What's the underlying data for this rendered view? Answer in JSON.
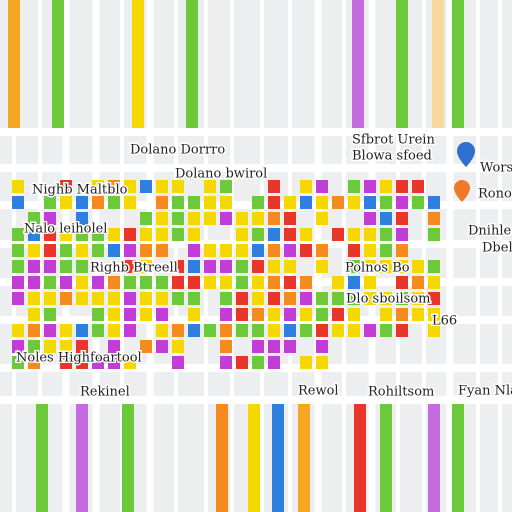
{
  "map": {
    "labels": [
      "Dolano Dorrro",
      "Sfbrot Urein",
      "Blowa sfoed",
      "Wors",
      "Rono",
      "Dolano bwirol",
      "Nighb Maltblo",
      "Nalo leiholel",
      "Righb Btreell",
      "Polnos Bo",
      "Dlo sboilsom",
      "Dnihle",
      "Dbelo",
      "L66",
      "Noles Highfoartool",
      "Rekinel",
      "Rewol",
      "Rohiltsom",
      "Fyan Nlar"
    ]
  }
}
